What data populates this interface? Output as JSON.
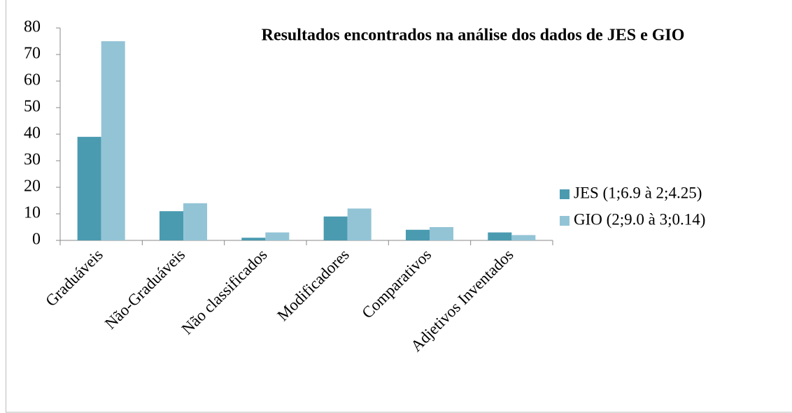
{
  "chart_data": {
    "type": "bar",
    "title": "Resultados encontrados na análise dos dados de JES e GIO",
    "categories": [
      "Graduáveis",
      "Não-Graduáveis",
      "Não classificados",
      "Modificadores",
      "Comparativos",
      "Adjetivos Inventados"
    ],
    "series": [
      {
        "name": "JES (1;6.9 à 2;4.25)",
        "color": "#4a9bb0",
        "values": [
          39,
          11,
          1,
          9,
          4,
          3
        ]
      },
      {
        "name": "GIO (2;9.0 à 3;0.14)",
        "color": "#93c4d6",
        "values": [
          75,
          14,
          3,
          12,
          5,
          2
        ]
      }
    ],
    "ylim": [
      0,
      80
    ],
    "yticks": [
      0,
      10,
      20,
      30,
      40,
      50,
      60,
      70,
      80
    ],
    "grid": false,
    "legend": "right"
  }
}
